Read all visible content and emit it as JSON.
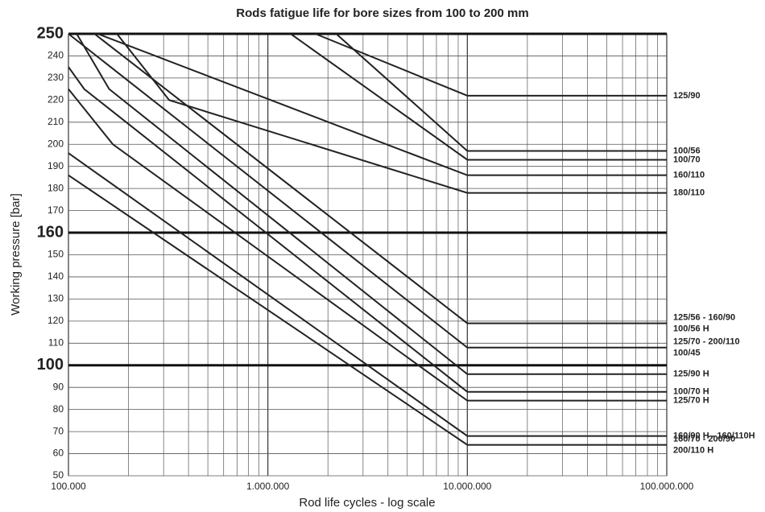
{
  "chart_data": {
    "type": "line",
    "title": "Rods fatigue life for bore sizes from 100 to 200 mm",
    "xlabel": "Rod life cycles - log scale",
    "ylabel": "Working pressure [bar]",
    "xscale": "log",
    "xlim": [
      100000,
      100000000
    ],
    "xticks": [
      {
        "value": 100000,
        "label": "100.000"
      },
      {
        "value": 1000000,
        "label": "1.000.000"
      },
      {
        "value": 10000000,
        "label": "10.000.000"
      },
      {
        "value": 100000000,
        "label": "100.000.000"
      }
    ],
    "xminor": [
      200000,
      300000,
      400000,
      500000,
      600000,
      700000,
      800000,
      900000,
      2000000,
      3000000,
      4000000,
      5000000,
      6000000,
      7000000,
      8000000,
      9000000,
      20000000,
      30000000,
      40000000,
      50000000,
      60000000,
      70000000,
      80000000,
      90000000
    ],
    "ylim": [
      50,
      250
    ],
    "yticks": [
      50,
      60,
      70,
      80,
      90,
      100,
      110,
      120,
      130,
      140,
      150,
      160,
      170,
      180,
      190,
      200,
      210,
      220,
      230,
      240,
      250
    ],
    "major_yticks": [
      100,
      160,
      250
    ],
    "grid": true,
    "color": "#222222",
    "series": [
      {
        "labels": [
          "125/90"
        ],
        "x": [
          1730000,
          10000000,
          100000000
        ],
        "values": [
          250,
          222,
          222
        ]
      },
      {
        "labels": [
          "100/56"
        ],
        "x": [
          2200000,
          10000000,
          100000000
        ],
        "values": [
          250,
          197,
          197
        ]
      },
      {
        "labels": [
          "100/70"
        ],
        "x": [
          1300000,
          10000000,
          100000000
        ],
        "values": [
          250,
          193,
          193
        ]
      },
      {
        "labels": [
          "160/110"
        ],
        "x": [
          140000,
          10000000,
          100000000
        ],
        "values": [
          250,
          186,
          186
        ]
      },
      {
        "labels": [
          "180/110"
        ],
        "x": [
          175000,
          320000,
          10000000,
          100000000
        ],
        "values": [
          250,
          220,
          178,
          178
        ]
      },
      {
        "labels": [
          "125/56 - 160/90",
          "100/56 H"
        ],
        "x": [
          135000,
          10000000,
          100000000
        ],
        "values": [
          250,
          119,
          119
        ]
      },
      {
        "labels": [
          "125/70 - 200/110",
          "100/45"
        ],
        "x": [
          100000,
          10000000,
          100000000
        ],
        "values": [
          250,
          108,
          108
        ]
      },
      {
        "labels": [
          "125/90 H"
        ],
        "x": [
          110000,
          160000,
          10000000,
          100000000
        ],
        "values": [
          250,
          225,
          96,
          96
        ]
      },
      {
        "labels": [
          "100/70 H"
        ],
        "x": [
          100000,
          120000,
          10000000,
          100000000
        ],
        "values": [
          235,
          225,
          88,
          88
        ]
      },
      {
        "labels": [
          "125/70 H"
        ],
        "x": [
          100000,
          167000,
          10000000,
          100000000
        ],
        "values": [
          225,
          200,
          84,
          84
        ]
      },
      {
        "labels": [
          "160/90 H - 160/110H"
        ],
        "x": [
          100000,
          10000000,
          100000000
        ],
        "values": [
          196,
          68,
          68
        ]
      },
      {
        "labels": [
          "160/70 - 200/90",
          "200/110 H"
        ],
        "x": [
          100000,
          10000000,
          100000000
        ],
        "values": [
          186,
          64,
          64
        ]
      }
    ]
  }
}
